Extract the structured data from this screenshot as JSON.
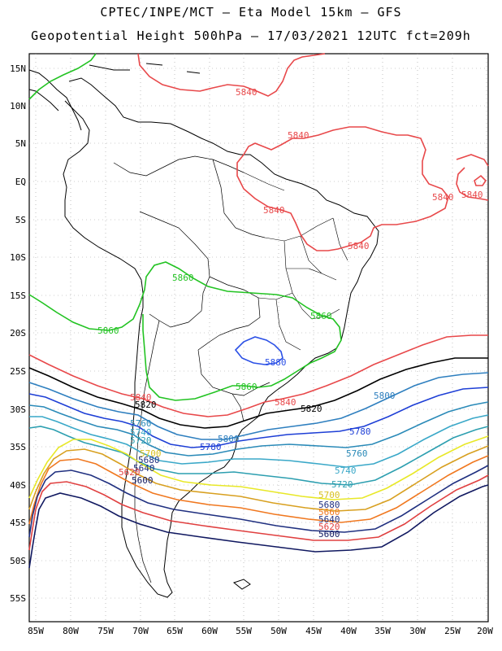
{
  "title": {
    "line1": "CPTEC/INPE/MCT –  Eta Model 15km – GFS",
    "line2": "Geopotential Height 500hPa – 17/03/2021 12UTC fct=209h"
  },
  "axes": {
    "lat_labels": [
      "15N",
      "10N",
      "5N",
      "EQ",
      "5S",
      "10S",
      "15S",
      "20S",
      "25S",
      "30S",
      "35S",
      "40S",
      "45S",
      "50S",
      "55S"
    ],
    "lon_labels": [
      "85W",
      "80W",
      "75W",
      "70W",
      "65W",
      "60W",
      "55W",
      "50W",
      "45W",
      "40W",
      "35W",
      "30W",
      "25W",
      "20W"
    ],
    "lat_range": [
      17,
      -59
    ],
    "lon_range": [
      -85,
      -20
    ],
    "grid": "dotted"
  },
  "colors": {
    "c5840": "#e8484a",
    "c5860": "#22c322",
    "c5880": "#2b50e6",
    "c5820": "#000000",
    "c5800": "#2e7fbf",
    "c5780": "#1e3fd6",
    "c5760": "#2a8ab8",
    "c5740": "#3aa8c8",
    "c5720": "#2d9fb0",
    "c5700": "#f2f23a",
    "c5680": "#d8a020",
    "c5660": "#f07820",
    "c5640": "#203080",
    "c5620": "#e04040",
    "c5600": "#101860"
  },
  "contour_labels": [
    {
      "text": "5840",
      "color": "c5840"
    },
    {
      "text": "5840",
      "color": "c5840"
    },
    {
      "text": "5840",
      "color": "c5840"
    },
    {
      "text": "5840",
      "color": "c5840"
    },
    {
      "text": "5840",
      "color": "c5840"
    },
    {
      "text": "5840",
      "color": "c5840"
    },
    {
      "text": "5840",
      "color": "c5840"
    },
    {
      "text": "5840",
      "color": "c5840"
    },
    {
      "text": "5860",
      "color": "c5860"
    },
    {
      "text": "5860",
      "color": "c5860"
    },
    {
      "text": "5860",
      "color": "c5860"
    },
    {
      "text": "5860",
      "color": "c5860"
    },
    {
      "text": "5880",
      "color": "c5880"
    },
    {
      "text": "5820",
      "color": "c5820"
    },
    {
      "text": "5820",
      "color": "c5820"
    },
    {
      "text": "5800",
      "color": "c5800"
    },
    {
      "text": "5800",
      "color": "c5800"
    },
    {
      "text": "5780",
      "color": "c5780"
    },
    {
      "text": "5780",
      "color": "c5780"
    },
    {
      "text": "5760",
      "color": "c5760"
    },
    {
      "text": "5760",
      "color": "c5760"
    },
    {
      "text": "5740",
      "color": "c5740"
    },
    {
      "text": "5740",
      "color": "c5740"
    },
    {
      "text": "5720",
      "color": "c5720"
    },
    {
      "text": "5720",
      "color": "c5720"
    },
    {
      "text": "5700",
      "color": "c5700"
    },
    {
      "text": "5700",
      "color": "c5700"
    },
    {
      "text": "5680",
      "color": "c5680"
    },
    {
      "text": "5680",
      "color": "c5680"
    },
    {
      "text": "5660",
      "color": "c5660"
    },
    {
      "text": "5640",
      "color": "c5640"
    },
    {
      "text": "5640",
      "color": "c5640"
    },
    {
      "text": "5620",
      "color": "c5620"
    },
    {
      "text": "5620",
      "color": "c5620"
    },
    {
      "text": "5600",
      "color": "c5600"
    },
    {
      "text": "5600",
      "color": "c5600"
    }
  ]
}
